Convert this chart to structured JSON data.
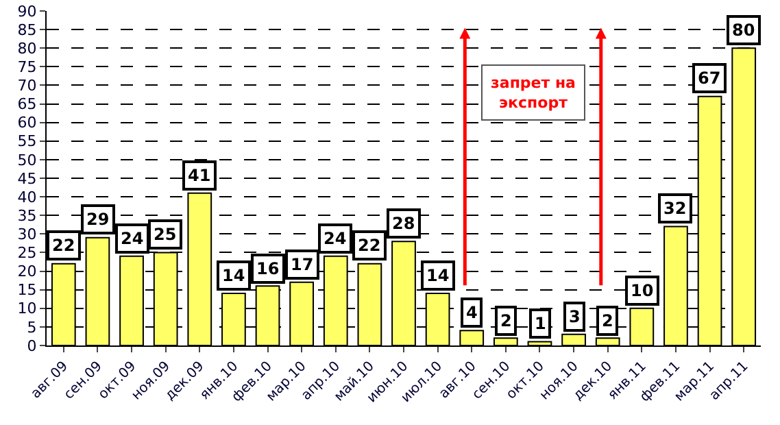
{
  "chart_data": {
    "type": "bar",
    "categories": [
      "авг.09",
      "сен.09",
      "окт.09",
      "ноя.09",
      "дек.09",
      "янв.10",
      "фев.10",
      "мар.10",
      "апр.10",
      "май.10",
      "июн.10",
      "июл.10",
      "авг.10",
      "сен.10",
      "окт.10",
      "ноя.10",
      "дек.10",
      "янв.11",
      "фев.11",
      "мар.11",
      "апр.11"
    ],
    "values": [
      22,
      29,
      24,
      25,
      41,
      14,
      16,
      17,
      24,
      22,
      28,
      14,
      4,
      2,
      1,
      3,
      2,
      10,
      32,
      67,
      80
    ],
    "color": "#ffff66",
    "ylim": [
      0,
      90
    ],
    "yticks": [
      0,
      5,
      10,
      15,
      20,
      25,
      30,
      35,
      40,
      45,
      50,
      55,
      60,
      65,
      70,
      75,
      80,
      85,
      90
    ],
    "grid": "y",
    "data_labels": true,
    "ref_lines": [
      {
        "axis": "x",
        "value": "авг.10",
        "color": "#ff0000"
      },
      {
        "axis": "x",
        "value": "дек.10",
        "color": "#ff0000"
      }
    ],
    "annotations": [
      "запрет на экспорт"
    ]
  }
}
